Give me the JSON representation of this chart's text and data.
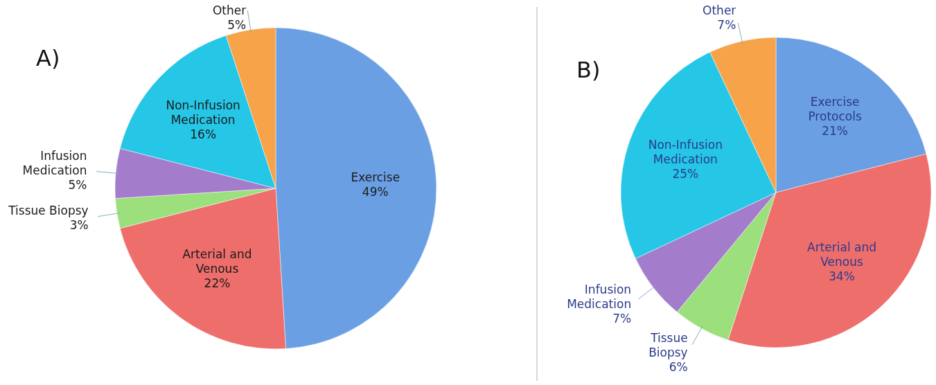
{
  "chart_data": [
    {
      "type": "pie",
      "title": "A)",
      "categories": [
        "Exercise",
        "Arterial and Venous",
        "Tissue Biopsy",
        "Infusion Medication",
        "Non-Infusion Medication",
        "Other"
      ],
      "values": [
        49,
        22,
        3,
        5,
        16,
        5
      ],
      "colors": [
        "#6b9fe3",
        "#ee6e6c",
        "#9be07c",
        "#a47ccc",
        "#25c6e6",
        "#f6a34a"
      ],
      "value_labels": [
        "49%",
        "22%",
        "3%",
        "5%",
        "16%",
        "5%"
      ]
    },
    {
      "type": "pie",
      "title": "B)",
      "categories": [
        "Exercise Protocols",
        "Arterial and Venous",
        "Tissue Biopsy",
        "Infusion Medication",
        "Non-Infusion Medication",
        "Other"
      ],
      "values": [
        21,
        34,
        6,
        7,
        25,
        7
      ],
      "colors": [
        "#6b9fe3",
        "#ee6e6c",
        "#9be07c",
        "#a47ccc",
        "#25c6e6",
        "#f6a34a"
      ],
      "value_labels": [
        "21%",
        "34%",
        "6%",
        "7%",
        "25%",
        "7%"
      ]
    }
  ]
}
